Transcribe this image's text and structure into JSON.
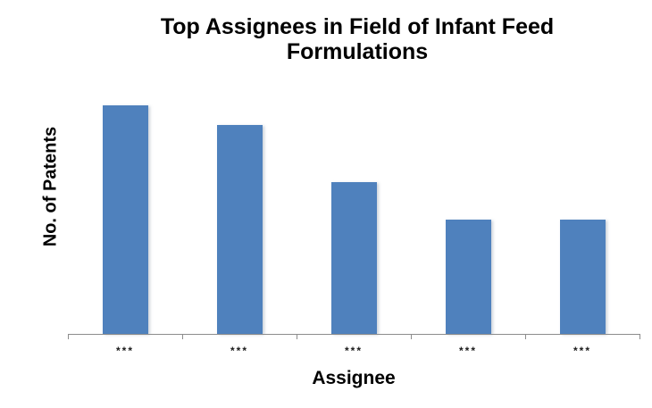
{
  "chart": {
    "title_lines": [
      "Top Assignees in Field of Infant Feed",
      "Formulations"
    ]
  },
  "chart_data": {
    "type": "bar",
    "title": "Top Assignees in Field of Infant Feed Formulations",
    "xlabel": "Assignee",
    "ylabel": "No. of Patents",
    "categories": [
      "***",
      "***",
      "***",
      "***",
      "***"
    ],
    "values": [
      12,
      11,
      8,
      6,
      6
    ],
    "ylim": [
      0,
      13
    ],
    "y_tick_labels_visible": false,
    "grid": false,
    "legend": false,
    "bar_color": "#4F81BD",
    "axis_color": "#8C8C8C",
    "label_color": "#1a1a1a",
    "title_color": "#000000"
  }
}
